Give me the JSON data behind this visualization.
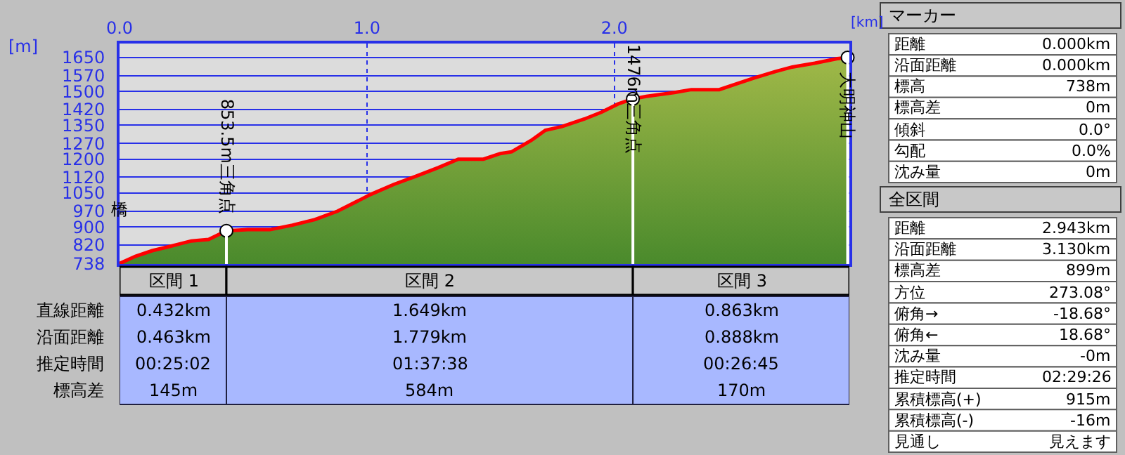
{
  "chart_data": {
    "type": "area",
    "xlabel": "[km]",
    "ylabel": "[m]",
    "x": [
      0,
      0.064,
      0.132,
      0.2,
      0.29,
      0.36,
      0.432,
      0.518,
      0.608,
      0.699,
      0.79,
      0.881,
      0.972,
      1.017,
      1.108,
      1.199,
      1.289,
      1.369,
      1.471,
      1.539,
      1.585,
      1.664,
      1.721,
      1.789,
      1.879,
      1.948,
      2.016,
      2.075,
      2.129,
      2.243,
      2.311,
      2.424,
      2.492,
      2.56,
      2.651,
      2.719,
      2.81,
      2.901,
      2.943
    ],
    "series": [
      {
        "color": "#ff0000",
        "values": [
          738,
          770,
          795,
          813,
          838,
          845,
          883,
          888,
          888,
          908,
          933,
          970,
          1020,
          1045,
          1088,
          1125,
          1163,
          1200,
          1200,
          1225,
          1233,
          1283,
          1328,
          1345,
          1378,
          1408,
          1445,
          1467,
          1478,
          1495,
          1508,
          1508,
          1533,
          1558,
          1588,
          1608,
          1625,
          1645,
          1650
        ]
      },
      {
        "type": "scatter",
        "marker": "circle",
        "color": "#ffffff",
        "x": [
          0.432,
          2.075,
          2.943
        ],
        "values": [
          883,
          1467,
          1650
        ]
      }
    ],
    "xlim": [
      0,
      2.95
    ],
    "ylim": [
      736,
      1712
    ],
    "xticks": [
      {
        "value": 0,
        "label": "0.0"
      },
      {
        "value": 1,
        "label": "1.0"
      },
      {
        "value": 2,
        "label": "2.0"
      }
    ],
    "yticks": [
      738,
      820,
      900,
      970,
      1050,
      1120,
      1200,
      1270,
      1350,
      1420,
      1500,
      1570,
      1650
    ],
    "grid": true,
    "annotations": [
      {
        "text": "橋",
        "x": 0,
        "y": 738
      },
      {
        "text": "853.5m三角点",
        "x": 0.432,
        "y": 883
      },
      {
        "text": "1476m三角点",
        "x": 2.075,
        "y": 1467
      },
      {
        "text": "大明神山",
        "x": 2.943,
        "y": 1650
      },
      "区間 1",
      "区間 2",
      "区間 3",
      "直線距離",
      "沿面距離",
      "推定時間",
      "標高差",
      "0.432km",
      "1.649km",
      "0.863km",
      "0.463km",
      "1.779km",
      "0.888km",
      "00:25:02",
      "01:37:38",
      "00:26:45",
      "145m",
      "584m",
      "170m",
      "マーカー",
      "距離",
      "0.000km",
      "沿面距離",
      "0.000km",
      "標高",
      "738m",
      "標高差",
      "0m",
      "傾斜",
      "0.0°",
      "勾配",
      "0.0%",
      "沈み量",
      "0m",
      "全区間",
      "距離",
      "2.943km",
      "沿面距離",
      "3.130km",
      "標高差",
      "899m",
      "方位",
      "273.08°",
      "俯角→",
      "-18.68°",
      "俯角←",
      "18.68°",
      "沈み量",
      "-0m",
      "推定時間",
      "02:29:26",
      "累積標高(+)",
      "915m",
      "累積標高(-)",
      "-16m",
      "見通し",
      "見えます"
    ]
  }
}
